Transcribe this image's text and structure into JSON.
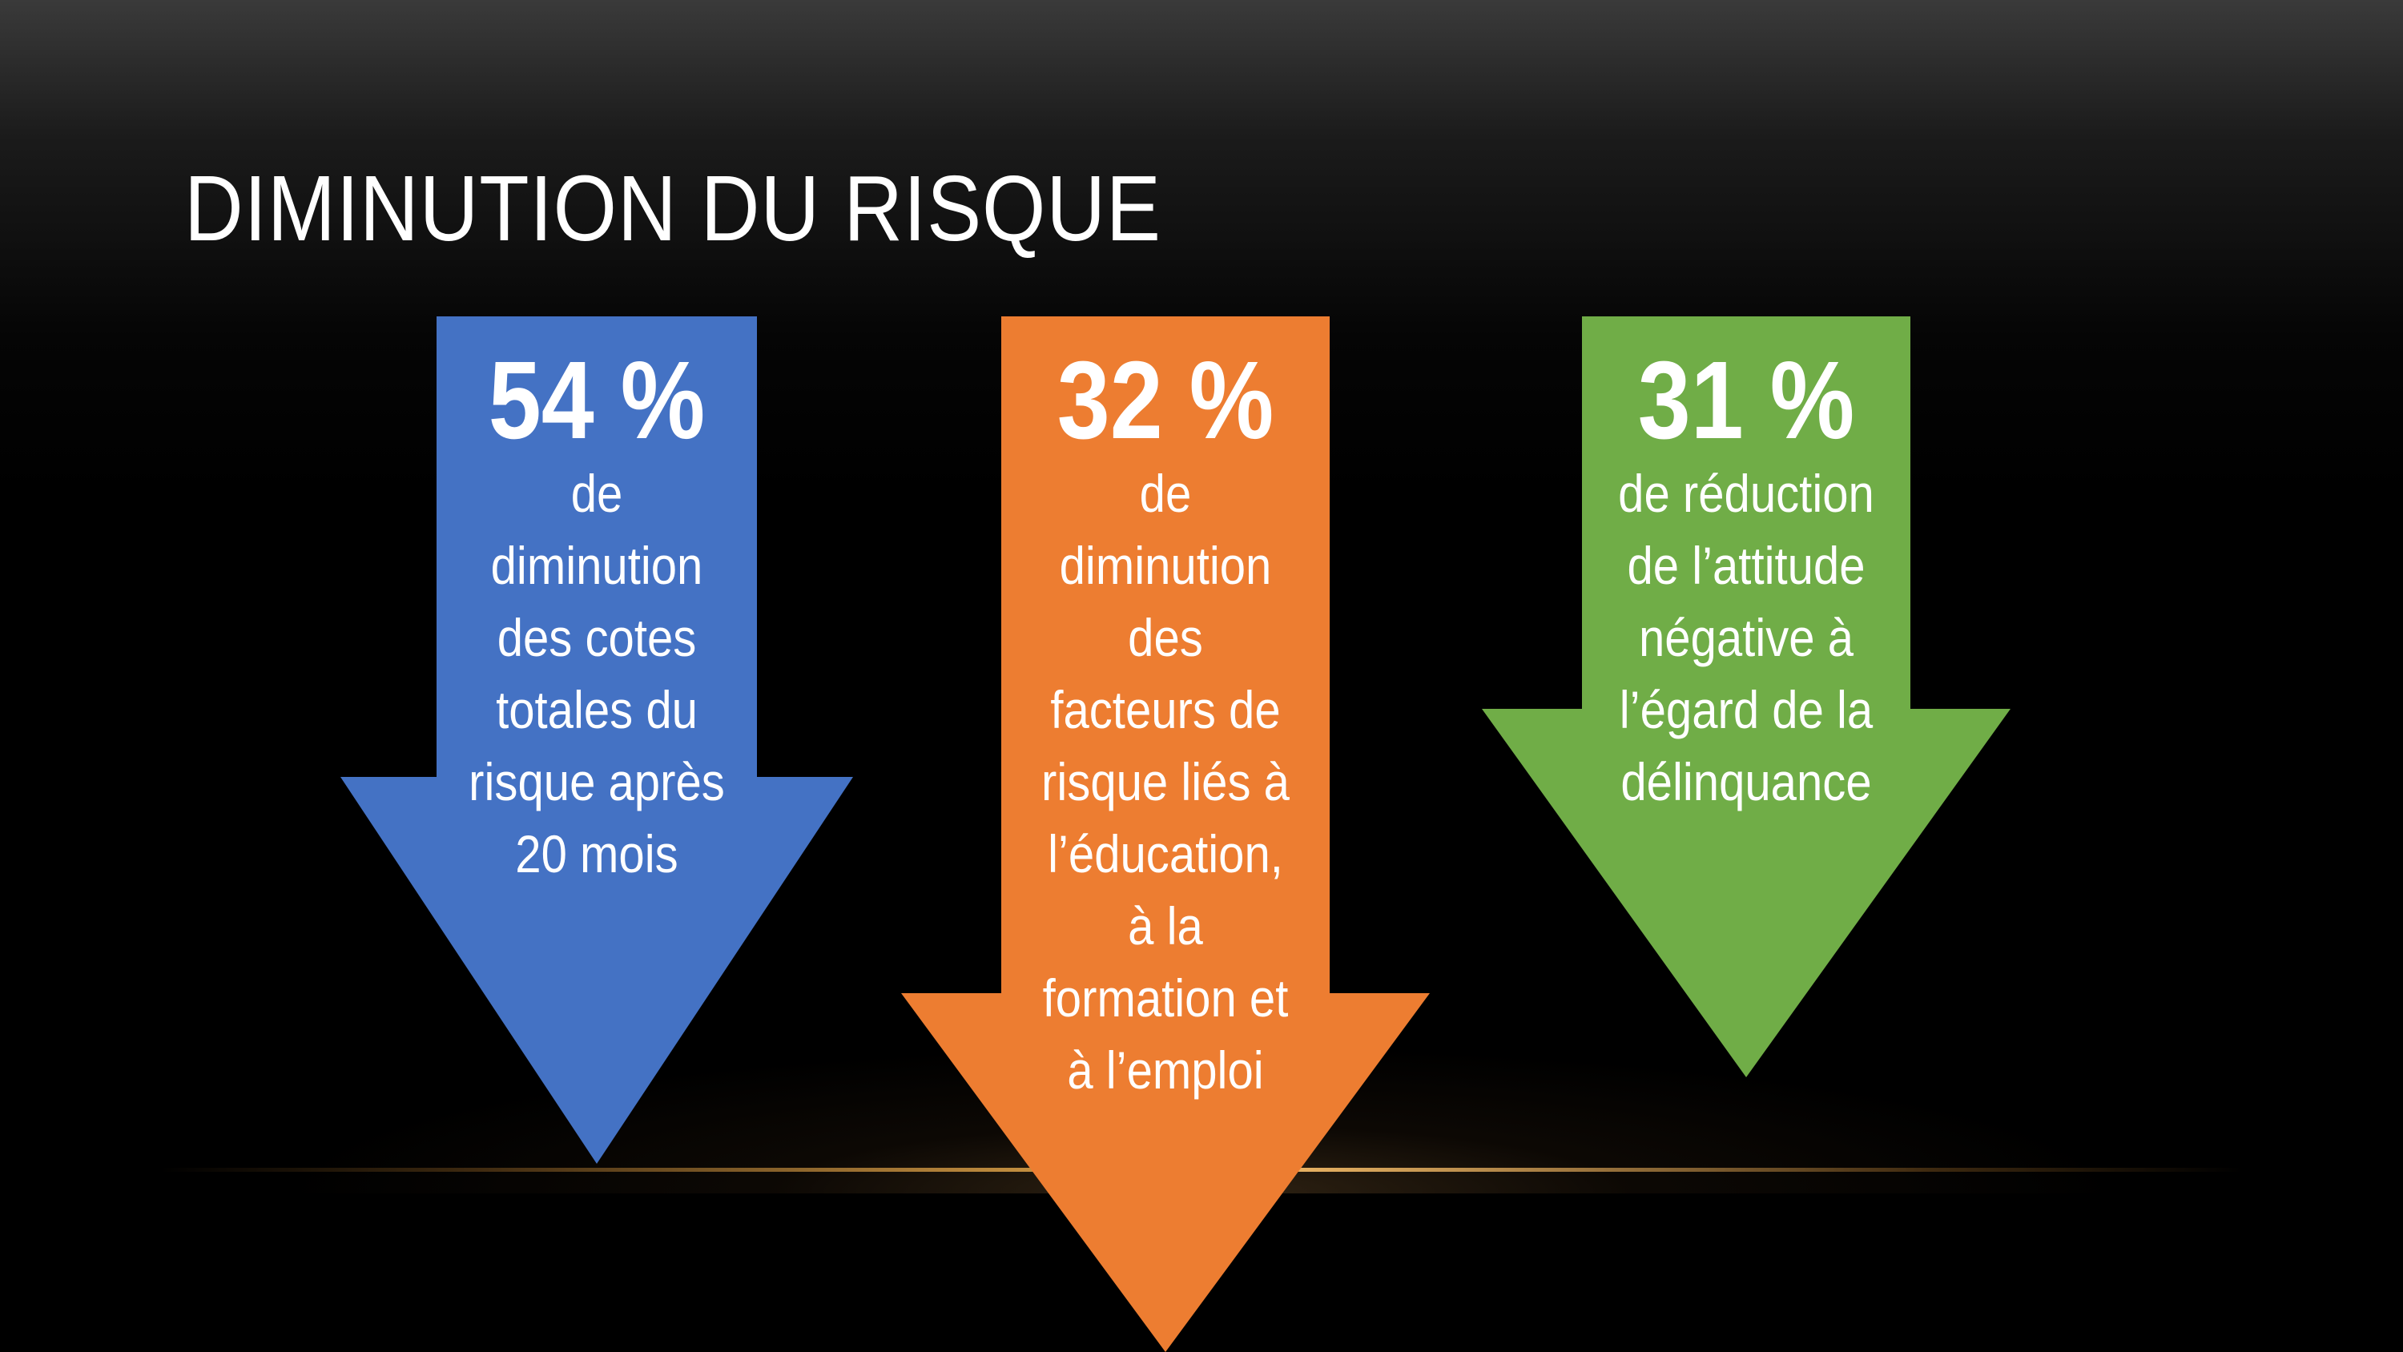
{
  "slide": {
    "title": "DIMINUTION DU RISQUE"
  },
  "arrows": [
    {
      "percent": "54 %",
      "lines": [
        "de",
        "diminution",
        "des cotes",
        "totales du",
        "risque après",
        "20 mois"
      ],
      "color": "#4472c4"
    },
    {
      "percent": "32 %",
      "lines": [
        "de",
        "diminution",
        "des",
        "facteurs de",
        "risque liés à",
        "l’éducation,",
        "à la",
        "formation et",
        "à l’emploi"
      ],
      "color": "#ed7d31"
    },
    {
      "percent": "31 %",
      "lines": [
        "de réduction",
        "de l’attitude",
        "négative à",
        "l’égard de la",
        "délinquance"
      ],
      "color": "#70ad47"
    }
  ],
  "theme": {
    "background": "#000000",
    "accent_line": "#d29a45"
  }
}
